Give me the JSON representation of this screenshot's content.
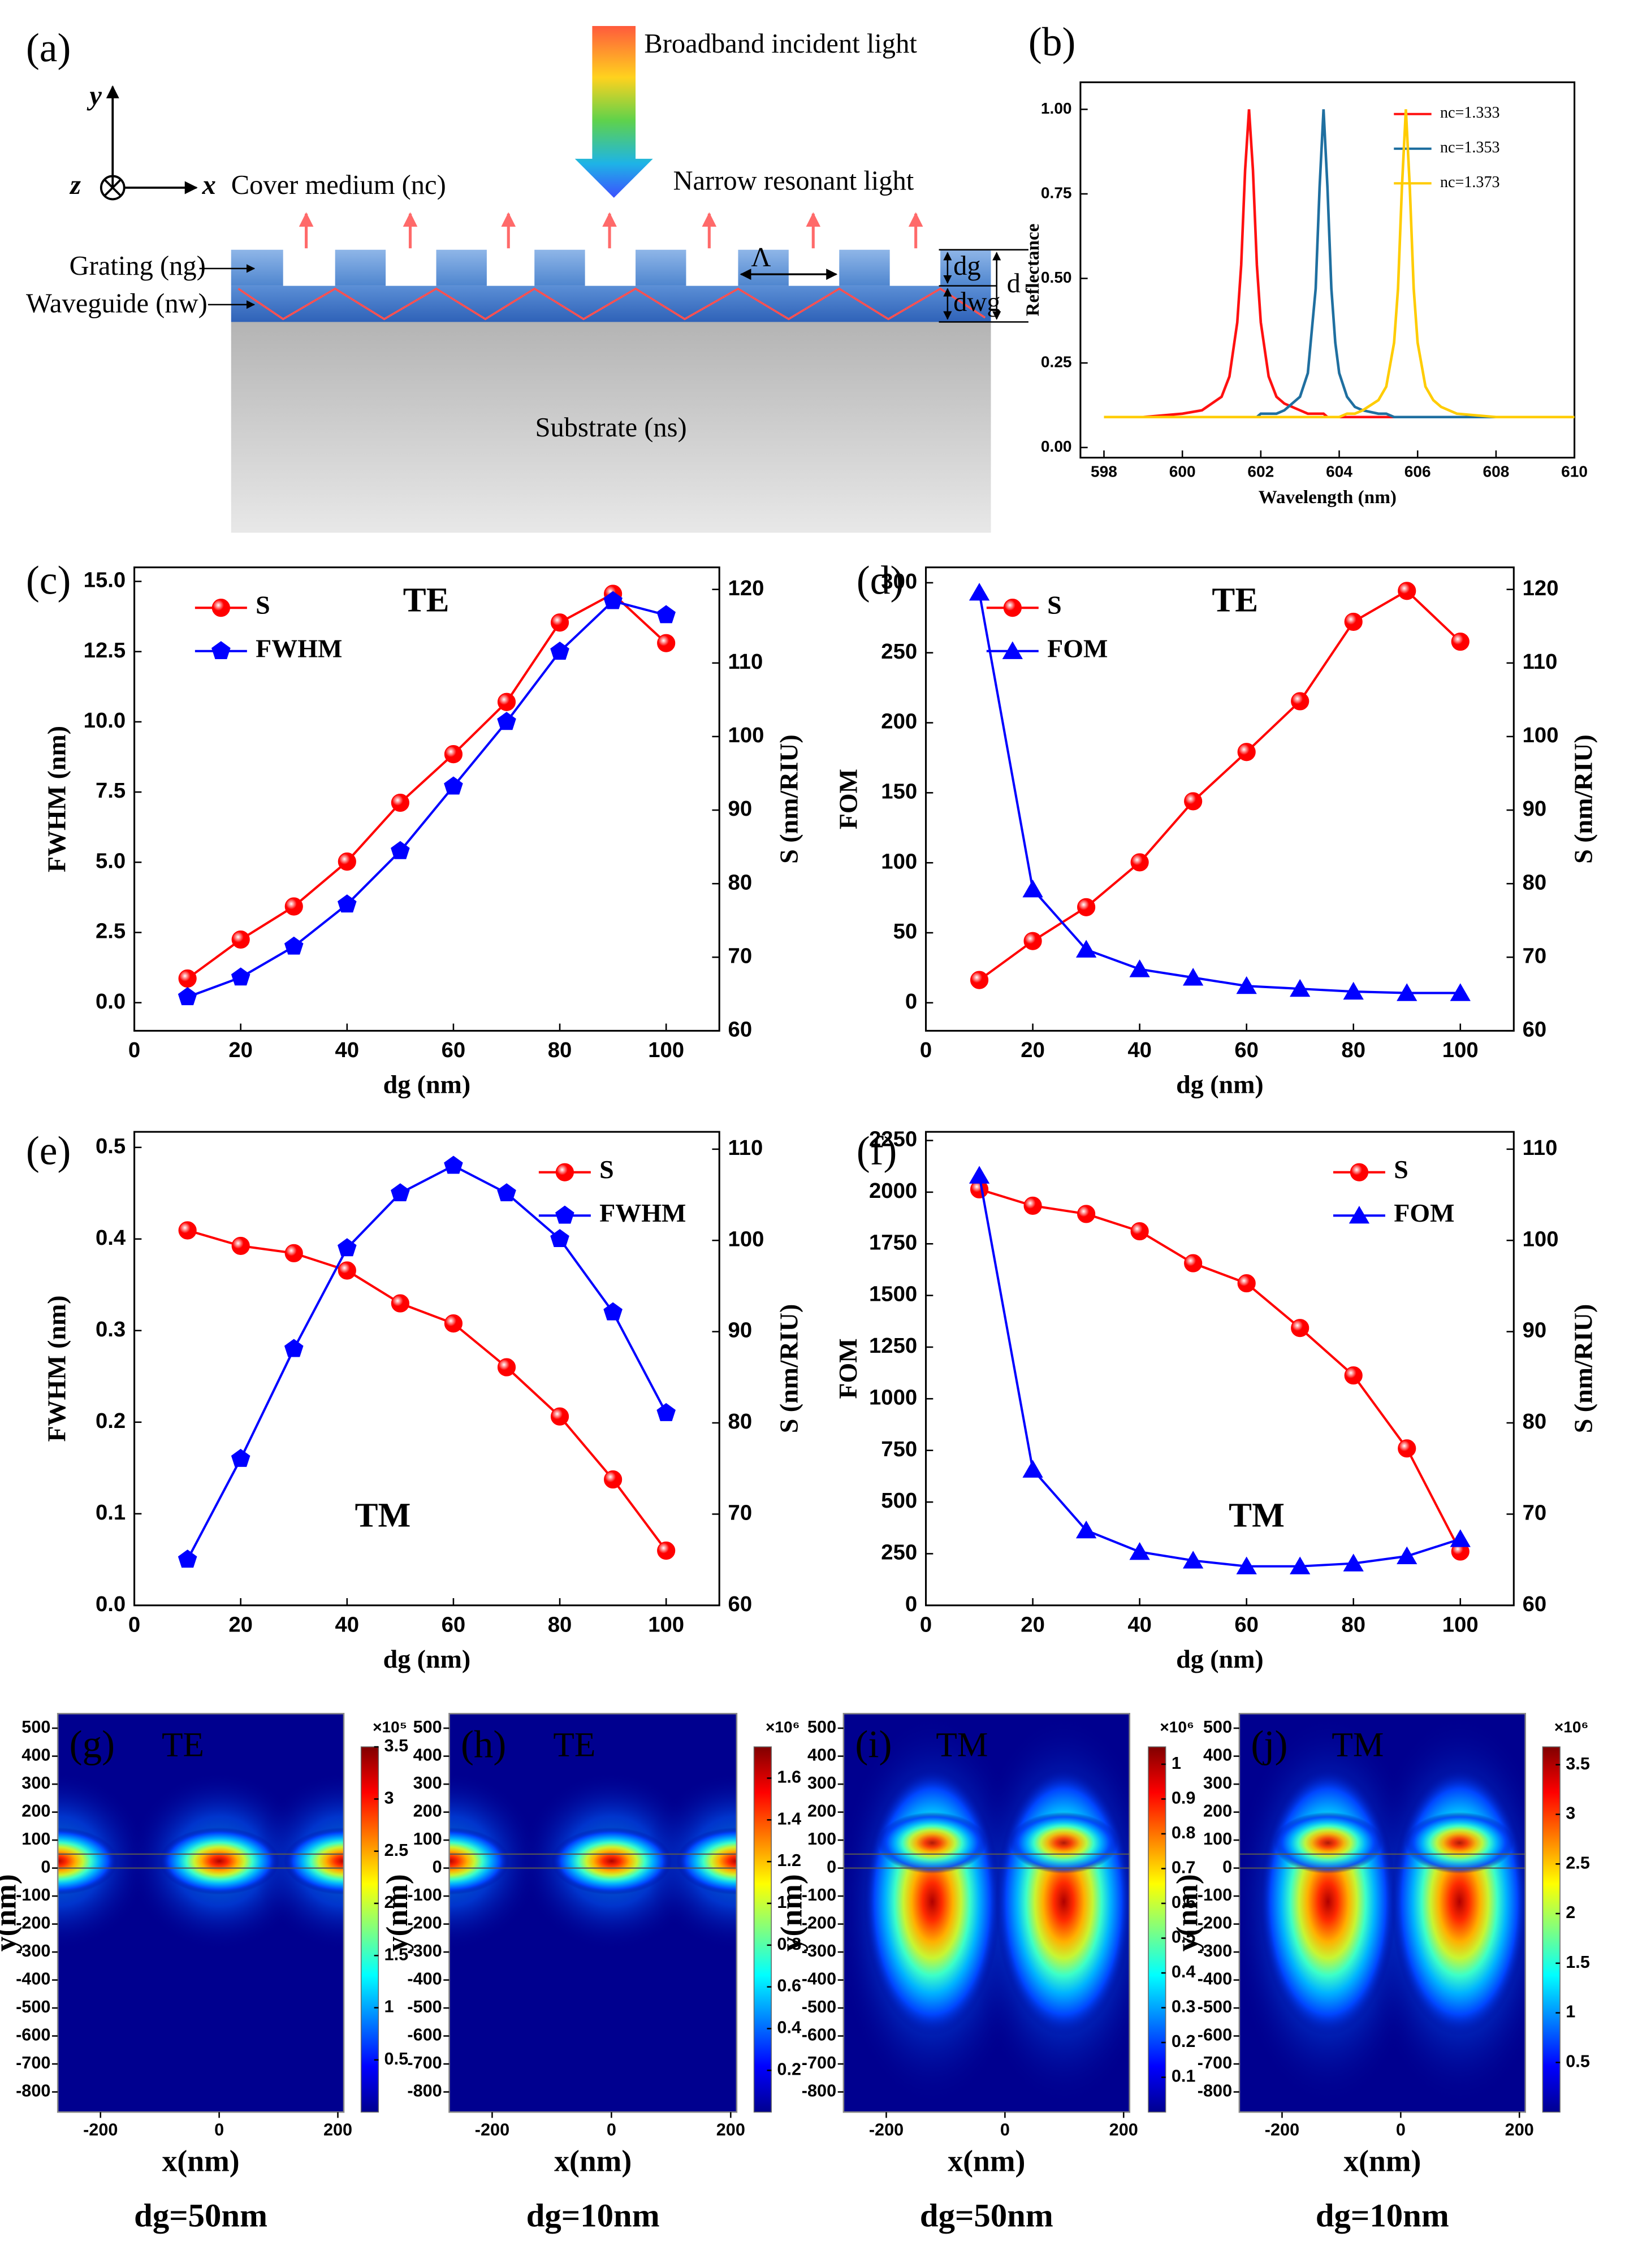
{
  "diagram": {
    "label": "(a)",
    "incident": "Broadband incident  light",
    "axis_y": "y",
    "axis_z": "z",
    "axis_x": "x",
    "cover": "Cover medium (nc)",
    "resonant": "Narrow resonant light",
    "grating": "Grating (ng)",
    "waveguide": "Waveguide (nw)",
    "period": "Λ",
    "grating_depth": "dg",
    "waveguide_depth": "dwg",
    "total_depth": "d",
    "substrate": "Substrate (ns)"
  },
  "chart_data": [
    {
      "type": "line",
      "label": "(b)",
      "x_label": "Wavelength (nm)",
      "y_label": "Reflectance",
      "legend": "upper right",
      "x": [
        598,
        599,
        600,
        600.5,
        601,
        601.2,
        601.4,
        601.5,
        601.6,
        601.7,
        601.8,
        601.9,
        602,
        602.2,
        602.4,
        602.6,
        603,
        603.2,
        603.4,
        603.5,
        603.6,
        603.7,
        603.8,
        603.9,
        604,
        604.2,
        604.4,
        604.6,
        605,
        605.2,
        605.4,
        605.5,
        605.6,
        605.7,
        605.8,
        605.9,
        606,
        606.2,
        606.4,
        606.6,
        607,
        608,
        609,
        610
      ],
      "xlim": [
        597.4,
        610
      ],
      "xticks": [
        598,
        600,
        602,
        604,
        606,
        608,
        610
      ],
      "ylim": [
        -0.03,
        1.08
      ],
      "yticks": [
        {
          "value": 0,
          "label": "0.00"
        },
        0.25,
        {
          "value": 0.5,
          "label": "0.50"
        },
        0.75,
        {
          "value": 1,
          "label": "1.00"
        }
      ],
      "series": [
        {
          "name": "nc=1.333",
          "color": "#ff1010",
          "values": [
            0.09,
            0.09,
            0.1,
            0.11,
            0.15,
            0.21,
            0.37,
            0.54,
            0.82,
            1.0,
            0.82,
            0.54,
            0.37,
            0.21,
            0.15,
            0.13,
            0.11,
            0.1,
            0.1,
            0.1,
            0.1,
            0.09,
            0.09,
            0.09,
            0.09,
            0.09,
            0.09,
            0.09,
            0.09,
            0.09,
            0.09,
            0.09,
            0.09,
            0.09,
            0.09,
            0.09,
            0.09,
            0.09,
            0.09,
            0.09,
            0.09,
            0.09,
            0.09,
            0.09
          ]
        },
        {
          "name": "nc=1.353",
          "color": "#1f6fa0",
          "values": [
            0.09,
            0.09,
            0.09,
            0.09,
            0.09,
            0.09,
            0.09,
            0.09,
            0.09,
            0.09,
            0.09,
            0.09,
            0.1,
            0.1,
            0.1,
            0.11,
            0.15,
            0.22,
            0.47,
            0.77,
            1.0,
            0.77,
            0.47,
            0.31,
            0.22,
            0.15,
            0.12,
            0.11,
            0.1,
            0.1,
            0.09,
            0.09,
            0.09,
            0.09,
            0.09,
            0.09,
            0.09,
            0.09,
            0.09,
            0.09,
            0.09,
            0.09,
            0.09,
            0.09
          ]
        },
        {
          "name": "nc=1.373",
          "color": "#ffcc00",
          "values": [
            0.09,
            0.09,
            0.09,
            0.09,
            0.09,
            0.09,
            0.09,
            0.09,
            0.09,
            0.09,
            0.09,
            0.09,
            0.09,
            0.09,
            0.09,
            0.09,
            0.09,
            0.09,
            0.09,
            0.09,
            0.09,
            0.09,
            0.09,
            0.09,
            0.09,
            0.1,
            0.1,
            0.11,
            0.14,
            0.18,
            0.31,
            0.47,
            0.77,
            1.0,
            0.77,
            0.47,
            0.31,
            0.18,
            0.14,
            0.12,
            0.1,
            0.09,
            0.09,
            0.09
          ]
        }
      ]
    },
    {
      "type": "line",
      "label": "(c)",
      "annotation": "TE",
      "x_label": "dg (nm)",
      "y_label": "FWHM (nm)",
      "y2_label": "S (nm/RIU)",
      "legend": "upper left",
      "x": [
        10,
        20,
        30,
        40,
        50,
        60,
        70,
        80,
        90,
        100
      ],
      "xlim": [
        0,
        110
      ],
      "xticks": [
        0,
        20,
        40,
        60,
        80,
        100
      ],
      "ylim": [
        -1,
        15.5
      ],
      "yticks": [
        {
          "value": 0,
          "label": "0.0"
        },
        2.5,
        {
          "value": 5,
          "label": "5.0"
        },
        7.5,
        {
          "value": 10,
          "label": "10.0"
        },
        12.5,
        {
          "value": 15,
          "label": "15.0"
        }
      ],
      "y2lim": [
        60,
        123
      ],
      "y2ticks": [
        60,
        70,
        80,
        90,
        100,
        110,
        120
      ],
      "series": [
        {
          "name": "S",
          "color": "#ff0000",
          "axis": "y2",
          "marker": "circle",
          "values": [
            67.1,
            72.4,
            76.9,
            83,
            91,
            97.6,
            104.7,
            115.5,
            119.4,
            112.7
          ]
        },
        {
          "name": "FWHM",
          "color": "#0000ff",
          "marker": "pentagon",
          "values": [
            0.2,
            0.9,
            2.0,
            3.5,
            5.4,
            7.7,
            10.0,
            12.5,
            14.3,
            13.8
          ]
        }
      ]
    },
    {
      "type": "line",
      "label": "(d)",
      "annotation": "TE",
      "x_label": "dg (nm)",
      "y_label": "FOM",
      "y2_label": "S (nm/RIU)",
      "legend": "upper left",
      "x": [
        10,
        20,
        30,
        40,
        50,
        60,
        70,
        80,
        90,
        100
      ],
      "xlim": [
        0,
        110
      ],
      "xticks": [
        0,
        20,
        40,
        60,
        80,
        100
      ],
      "ylim": [
        -20,
        311
      ],
      "yticks": [
        0,
        50,
        100,
        150,
        200,
        250,
        300
      ],
      "y2lim": [
        60,
        123
      ],
      "y2ticks": [
        60,
        70,
        80,
        90,
        100,
        110,
        120
      ],
      "series": [
        {
          "name": "S",
          "color": "#ff0000",
          "axis": "y2",
          "marker": "circle",
          "values": [
            66.9,
            72.2,
            76.8,
            82.9,
            91.2,
            97.9,
            104.8,
            115.6,
            119.8,
            112.9
          ]
        },
        {
          "name": "FOM",
          "color": "#0000ff",
          "marker": "triangle",
          "values": [
            293,
            81,
            38,
            24,
            18,
            12,
            10,
            8,
            7,
            7
          ]
        }
      ]
    },
    {
      "type": "line",
      "label": "(e)",
      "annotation": "TM",
      "x_label": "dg (nm)",
      "y_label": "FWHM (nm)",
      "y2_label": "S (nm/RIU)",
      "legend": "upper right",
      "x": [
        10,
        20,
        30,
        40,
        50,
        60,
        70,
        80,
        90,
        100
      ],
      "xlim": [
        0,
        110
      ],
      "xticks": [
        0,
        20,
        40,
        60,
        80,
        100
      ],
      "ylim": [
        0,
        0.517
      ],
      "yticks": [
        {
          "value": 0,
          "label": "0.0"
        },
        0.1,
        0.2,
        0.3,
        0.4,
        0.5
      ],
      "y2lim": [
        60,
        111.9
      ],
      "y2ticks": [
        60,
        70,
        80,
        90,
        100,
        110
      ],
      "series": [
        {
          "name": "S",
          "color": "#ff0000",
          "axis": "y2",
          "marker": "circle",
          "values": [
            101.1,
            99.4,
            98.6,
            96.7,
            93.1,
            90.9,
            86.1,
            80.7,
            73.8,
            66.0
          ]
        },
        {
          "name": "FWHM",
          "color": "#0000ff",
          "marker": "pentagon",
          "values": [
            0.05,
            0.16,
            0.28,
            0.39,
            0.45,
            0.48,
            0.45,
            0.4,
            0.32,
            0.21
          ]
        }
      ]
    },
    {
      "type": "line",
      "label": "(f)",
      "annotation": "TM",
      "x_label": "dg (nm)",
      "y_label": "FOM",
      "y2_label": "S (nm/RIU)",
      "legend": "upper right",
      "x": [
        10,
        20,
        30,
        40,
        50,
        60,
        70,
        80,
        90,
        100
      ],
      "xlim": [
        0,
        110
      ],
      "xticks": [
        0,
        20,
        40,
        60,
        80,
        100
      ],
      "ylim": [
        0,
        2292
      ],
      "yticks": [
        0,
        250,
        500,
        750,
        1000,
        1250,
        1500,
        1750,
        2000,
        2250
      ],
      "y2lim": [
        60,
        111.9
      ],
      "y2ticks": [
        60,
        70,
        80,
        90,
        100,
        110
      ],
      "series": [
        {
          "name": "S",
          "color": "#ff0000",
          "axis": "y2",
          "marker": "circle",
          "values": [
            105.6,
            103.8,
            102.9,
            101,
            97.5,
            95.3,
            90.4,
            85.2,
            77.2,
            65.9
          ]
        },
        {
          "name": "FOM",
          "color": "#0000ff",
          "marker": "triangle",
          "values": [
            2080,
            657,
            363,
            259,
            217,
            189,
            189,
            203,
            238,
            321
          ]
        }
      ]
    },
    {
      "type": "heatmap",
      "label": "(g)",
      "annotation": "TE",
      "x_label": "x(nm)",
      "y_label": "y(nm)",
      "caption": "dg=50nm",
      "xlim": [
        -272,
        210
      ],
      "xticks": [
        -200,
        0,
        200
      ],
      "ylim": [
        -872,
        552
      ],
      "yticks": [
        500,
        400,
        300,
        200,
        100,
        0,
        -100,
        -200,
        -300,
        -400,
        -500,
        -600,
        -700,
        -800
      ],
      "colorbar": {
        "lim": [
          0,
          3.5
        ],
        "ticks": [
          0.5,
          1,
          1.5,
          2,
          2.5,
          3,
          3.5
        ],
        "exponent": "×10⁵"
      }
    },
    {
      "type": "heatmap",
      "label": "(h)",
      "annotation": "TE",
      "x_label": "x(nm)",
      "y_label": "y(nm)",
      "caption": "dg=10nm",
      "xlim": [
        -272,
        210
      ],
      "xticks": [
        -200,
        0,
        200
      ],
      "ylim": [
        -872,
        552
      ],
      "yticks": [
        500,
        400,
        300,
        200,
        100,
        0,
        -100,
        -200,
        -300,
        -400,
        -500,
        -600,
        -700,
        -800
      ],
      "colorbar": {
        "lim": [
          0,
          1.75
        ],
        "ticks": [
          0.2,
          0.4,
          0.6,
          0.8,
          1,
          1.2,
          1.4,
          1.6
        ],
        "exponent": "×10⁶"
      }
    },
    {
      "type": "heatmap",
      "label": "(i)",
      "annotation": "TM",
      "x_label": "x(nm)",
      "y_label": "y(nm)",
      "caption": "dg=50nm",
      "xlim": [
        -272,
        210
      ],
      "xticks": [
        -200,
        0,
        200
      ],
      "ylim": [
        -872,
        552
      ],
      "yticks": [
        500,
        400,
        300,
        200,
        100,
        0,
        -100,
        -200,
        -300,
        -400,
        -500,
        -600,
        -700,
        -800
      ],
      "colorbar": {
        "lim": [
          0,
          1.05
        ],
        "ticks": [
          0.1,
          0.2,
          0.3,
          0.4,
          0.5,
          0.6,
          0.7,
          0.8,
          0.9,
          1
        ],
        "exponent": "×10⁶"
      }
    },
    {
      "type": "heatmap",
      "label": "(j)",
      "annotation": "TM",
      "x_label": "x(nm)",
      "y_label": "y(nm)",
      "caption": "dg=10nm",
      "xlim": [
        -272,
        210
      ],
      "xticks": [
        -200,
        0,
        200
      ],
      "ylim": [
        -872,
        552
      ],
      "yticks": [
        500,
        400,
        300,
        200,
        100,
        0,
        -100,
        -200,
        -300,
        -400,
        -500,
        -600,
        -700,
        -800
      ],
      "colorbar": {
        "lim": [
          0,
          3.68
        ],
        "ticks": [
          0.5,
          1,
          1.5,
          2,
          2.5,
          3,
          3.5
        ],
        "exponent": "×10⁶"
      }
    }
  ]
}
